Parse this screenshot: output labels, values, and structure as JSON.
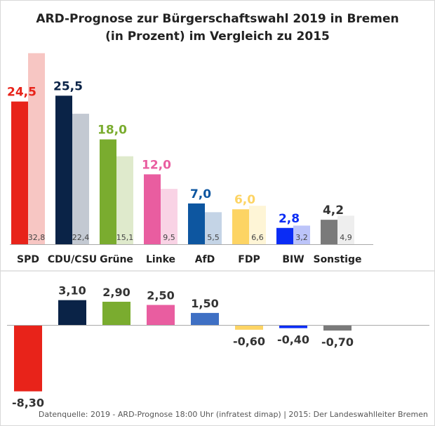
{
  "chart_data": [
    {
      "type": "bar",
      "title_lines": [
        "ARD-Prognose zur Bürgerschaftswahl 2019 in Bremen",
        "(in Prozent) im Vergleich zu 2015"
      ],
      "categories": [
        "SPD",
        "CDU/CSU",
        "Grüne",
        "Linke",
        "AfD",
        "FDP",
        "BIW",
        "Sonstige"
      ],
      "series": [
        {
          "values": [
            24.5,
            25.5,
            18.0,
            12.0,
            7.0,
            6.0,
            2.8,
            4.2
          ],
          "labels": [
            "24,5",
            "25,5",
            "18,0",
            "12,0",
            "7,0",
            "6,0",
            "2,8",
            "4,2"
          ]
        },
        {
          "values": [
            32.8,
            22.4,
            15.1,
            9.5,
            5.5,
            6.6,
            3.2,
            4.9
          ],
          "labels": [
            "32,8",
            "22,4",
            "15,1",
            "9,5",
            "5,5",
            "6,6",
            "3,2",
            "4,9"
          ]
        }
      ],
      "colors": [
        "#e8231a",
        "#0a2347",
        "#7aac2f",
        "#e95da0",
        "#0d56a0",
        "#fdd464",
        "#0a2cf5",
        "#7a7a7a"
      ],
      "colors_2015": [
        "#f7c6c3",
        "#c3c9d2",
        "#dfeacc",
        "#f9d3e5",
        "#c4d4e6",
        "#fef5d6",
        "#bcc4f9",
        "#eeeeee"
      ],
      "label_colors": [
        "#e8231a",
        "#0a2347",
        "#7aac2f",
        "#e95da0",
        "#0d56a0",
        "#fdd464",
        "#0a2cf5",
        "#333333"
      ],
      "ylim": [
        0,
        33
      ]
    },
    {
      "type": "bar",
      "categories": [
        "SPD",
        "CDU/CSU",
        "Grüne",
        "Linke",
        "AfD",
        "FDP",
        "BIW",
        "Sonstige"
      ],
      "values": [
        -8.3,
        3.1,
        2.9,
        2.5,
        1.5,
        -0.6,
        -0.4,
        -0.7
      ],
      "labels": [
        "-8,30",
        "3,10",
        "2,90",
        "2,50",
        "1,50",
        "-0,60",
        "-0,40",
        "-0,70"
      ],
      "colors": [
        "#e8231a",
        "#0a2347",
        "#7aac2f",
        "#e95da0",
        "#3f70c4",
        "#fdd464",
        "#0a2cf5",
        "#7a7a7a"
      ],
      "ylim": [
        -8.5,
        3.5
      ]
    }
  ],
  "source": "Datenquelle: 2019 - ARD-Prognose 18:00 Uhr (infratest dimap) | 2015: Der Landeswahlleiter Bremen"
}
